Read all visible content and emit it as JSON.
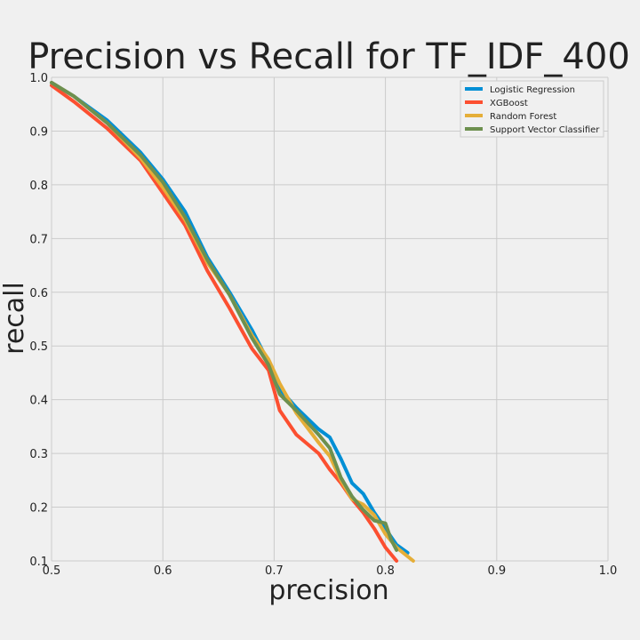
{
  "chart_data": {
    "type": "line",
    "title": "Precision vs Recall for TF_IDF_400",
    "xlabel": "precision",
    "ylabel": "recall",
    "xlim": [
      0.5,
      1.0
    ],
    "ylim": [
      0.1,
      1.0
    ],
    "xticks": [
      "0.5",
      "0.6",
      "0.7",
      "0.8",
      "0.9",
      "1.0"
    ],
    "yticks": [
      "0.1",
      "0.2",
      "0.3",
      "0.4",
      "0.5",
      "0.6",
      "0.7",
      "0.8",
      "0.9",
      "1.0"
    ],
    "grid": true,
    "legend_position": "top-right",
    "series": [
      {
        "name": "Logistic Regression",
        "color": "#008fd5",
        "points": [
          [
            0.5,
            0.99
          ],
          [
            0.52,
            0.965
          ],
          [
            0.55,
            0.92
          ],
          [
            0.58,
            0.86
          ],
          [
            0.6,
            0.81
          ],
          [
            0.62,
            0.75
          ],
          [
            0.64,
            0.665
          ],
          [
            0.66,
            0.6
          ],
          [
            0.68,
            0.53
          ],
          [
            0.695,
            0.47
          ],
          [
            0.705,
            0.42
          ],
          [
            0.72,
            0.385
          ],
          [
            0.74,
            0.345
          ],
          [
            0.75,
            0.33
          ],
          [
            0.76,
            0.29
          ],
          [
            0.77,
            0.245
          ],
          [
            0.78,
            0.225
          ],
          [
            0.79,
            0.19
          ],
          [
            0.8,
            0.16
          ],
          [
            0.81,
            0.13
          ],
          [
            0.82,
            0.115
          ]
        ]
      },
      {
        "name": "XGBoost",
        "color": "#fc4f30",
        "points": [
          [
            0.5,
            0.985
          ],
          [
            0.52,
            0.955
          ],
          [
            0.55,
            0.905
          ],
          [
            0.58,
            0.845
          ],
          [
            0.6,
            0.785
          ],
          [
            0.62,
            0.725
          ],
          [
            0.64,
            0.64
          ],
          [
            0.66,
            0.57
          ],
          [
            0.68,
            0.495
          ],
          [
            0.695,
            0.455
          ],
          [
            0.705,
            0.38
          ],
          [
            0.72,
            0.335
          ],
          [
            0.74,
            0.3
          ],
          [
            0.75,
            0.27
          ],
          [
            0.76,
            0.245
          ],
          [
            0.77,
            0.215
          ],
          [
            0.78,
            0.19
          ],
          [
            0.79,
            0.16
          ],
          [
            0.8,
            0.125
          ],
          [
            0.81,
            0.1
          ]
        ]
      },
      {
        "name": "Random Forest",
        "color": "#e5ae38",
        "points": [
          [
            0.5,
            0.99
          ],
          [
            0.52,
            0.965
          ],
          [
            0.55,
            0.915
          ],
          [
            0.58,
            0.85
          ],
          [
            0.6,
            0.795
          ],
          [
            0.62,
            0.735
          ],
          [
            0.64,
            0.655
          ],
          [
            0.66,
            0.595
          ],
          [
            0.68,
            0.52
          ],
          [
            0.695,
            0.475
          ],
          [
            0.705,
            0.43
          ],
          [
            0.72,
            0.375
          ],
          [
            0.74,
            0.32
          ],
          [
            0.75,
            0.295
          ],
          [
            0.76,
            0.25
          ],
          [
            0.77,
            0.215
          ],
          [
            0.78,
            0.205
          ],
          [
            0.79,
            0.185
          ],
          [
            0.8,
            0.15
          ],
          [
            0.81,
            0.125
          ],
          [
            0.825,
            0.1
          ]
        ]
      },
      {
        "name": "Support Vector Classifier",
        "color": "#6d904f",
        "points": [
          [
            0.5,
            0.99
          ],
          [
            0.52,
            0.965
          ],
          [
            0.55,
            0.915
          ],
          [
            0.58,
            0.855
          ],
          [
            0.6,
            0.805
          ],
          [
            0.62,
            0.74
          ],
          [
            0.64,
            0.66
          ],
          [
            0.66,
            0.595
          ],
          [
            0.68,
            0.515
          ],
          [
            0.695,
            0.465
          ],
          [
            0.705,
            0.41
          ],
          [
            0.72,
            0.38
          ],
          [
            0.74,
            0.335
          ],
          [
            0.75,
            0.31
          ],
          [
            0.76,
            0.255
          ],
          [
            0.77,
            0.22
          ],
          [
            0.78,
            0.195
          ],
          [
            0.79,
            0.175
          ],
          [
            0.8,
            0.17
          ],
          [
            0.805,
            0.14
          ],
          [
            0.81,
            0.12
          ]
        ]
      }
    ]
  }
}
